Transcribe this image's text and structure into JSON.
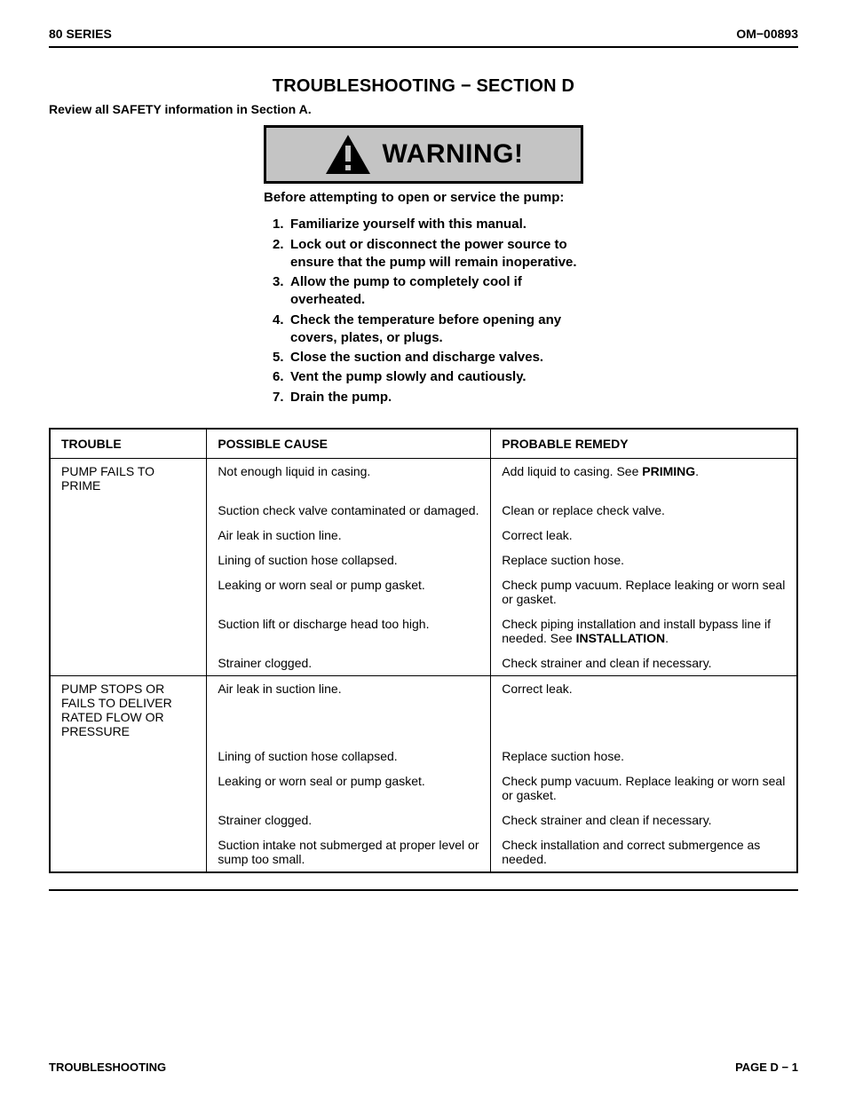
{
  "header": {
    "left": "80 SERIES",
    "right": "OM−00893"
  },
  "title": "TROUBLESHOOTING − SECTION D",
  "review_line": "Review all SAFETY information in Section A.",
  "warning_label": "WARNING!",
  "before_text": "Before attempting to open or service the pump:",
  "warning_items": [
    "Familiarize yourself with this manual.",
    "Lock out or disconnect the power source to ensure that the pump will remain inoperative.",
    "Allow the pump to completely cool if overheated.",
    "Check the temperature before opening any covers, plates, or plugs.",
    "Close the suction and discharge valves.",
    "Vent the pump slowly and cautiously.",
    "Drain the pump."
  ],
  "table": {
    "headers": {
      "trouble": "TROUBLE",
      "cause": "POSSIBLE CAUSE",
      "remedy": "PROBABLE REMEDY"
    },
    "sections": [
      {
        "trouble": "PUMP FAILS TO PRIME",
        "rows": [
          {
            "cause": "Not enough liquid in casing.",
            "remedy_pre": "Add liquid to casing. See ",
            "remedy_bold": "PRIMING",
            "remedy_post": "."
          },
          {
            "cause": "Suction check valve contaminated or damaged.",
            "cause_justify": true,
            "remedy": "Clean or replace check valve."
          },
          {
            "cause": "Air leak in suction line.",
            "remedy": "Correct leak."
          },
          {
            "cause": "Lining of suction hose collapsed.",
            "remedy": "Replace suction hose."
          },
          {
            "cause": "Leaking or worn seal or pump gasket.",
            "remedy": "Check pump vacuum. Replace leaking or worn seal or gasket.",
            "remedy_justify": true
          },
          {
            "cause": "Suction lift or discharge head too high.",
            "remedy_pre": "Check piping installation and install bypass line if needed. See ",
            "remedy_bold": "INSTALLATION",
            "remedy_post": "."
          },
          {
            "cause": "Strainer clogged.",
            "remedy": "Check strainer and clean if necessary."
          }
        ]
      },
      {
        "trouble": "PUMP STOPS OR FAILS TO DELIVER RATED FLOW OR PRESSURE",
        "rows": [
          {
            "cause": "Air leak in suction line.",
            "remedy": "Correct leak."
          },
          {
            "cause": "Lining of suction hose collapsed.",
            "remedy": "Replace suction hose."
          },
          {
            "cause": "Leaking or worn seal or pump gasket.",
            "remedy": "Check pump vacuum. Replace leaking or worn seal or gasket.",
            "remedy_justify": true
          },
          {
            "cause": "Strainer clogged.",
            "remedy": "Check strainer and clean if necessary."
          },
          {
            "cause": "Suction intake not submerged at proper level or sump too small.",
            "cause_justify": true,
            "remedy": "Check installation and correct submergence as needed."
          }
        ]
      }
    ]
  },
  "footer": {
    "left": "TROUBLESHOOTING",
    "right": "PAGE D − 1"
  },
  "colors": {
    "text": "#000000",
    "background": "#ffffff",
    "warning_bg": "#c4c4c4",
    "rule": "#000000"
  },
  "typography": {
    "base_font": "Arial, Helvetica, sans-serif",
    "title_size_pt": 15,
    "body_size_pt": 11,
    "warning_size_pt": 22
  }
}
